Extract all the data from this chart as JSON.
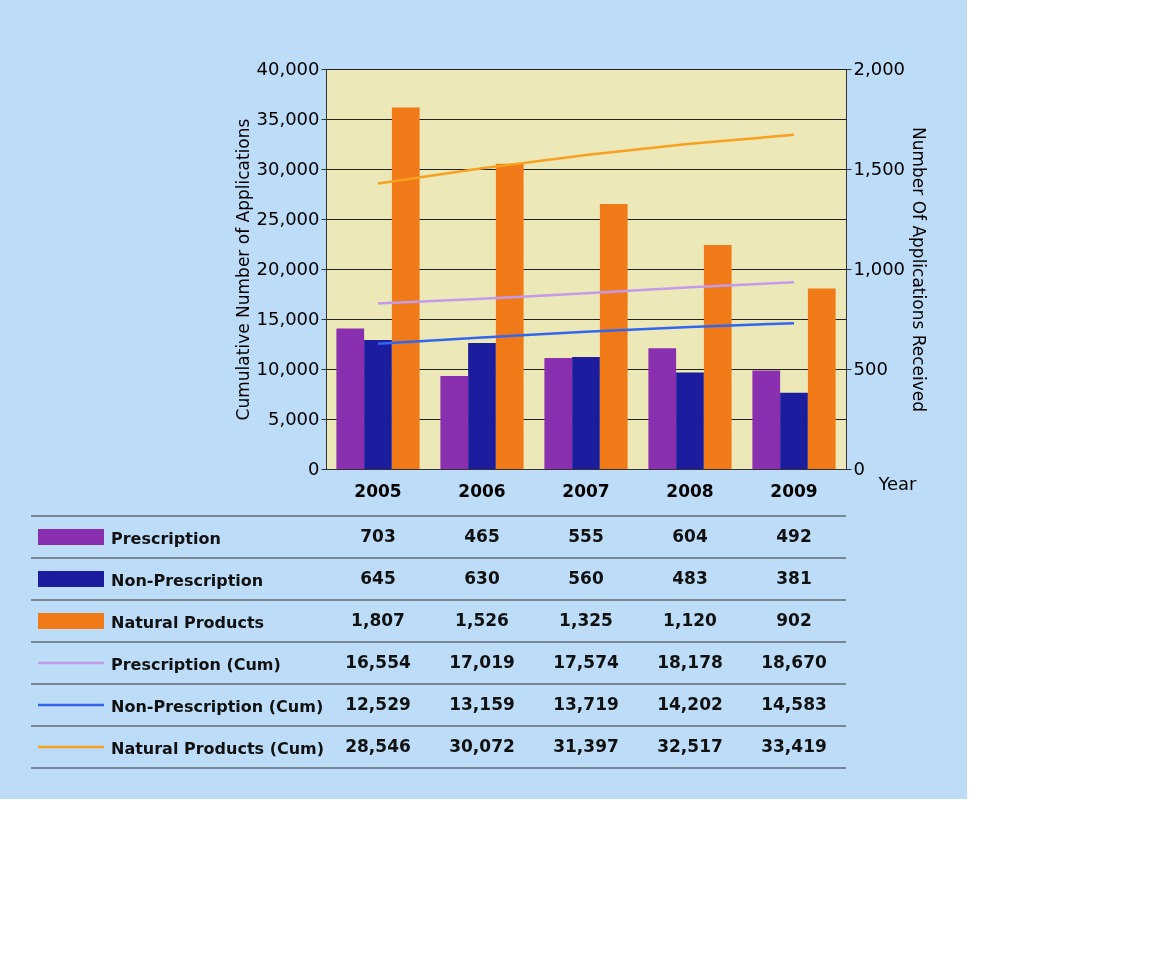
{
  "chart_data": {
    "type": "bar",
    "categories": [
      "2005",
      "2006",
      "2007",
      "2008",
      "2009"
    ],
    "xlabel": "Year",
    "ylabel": "Cumulative Number of Applications",
    "y2label": "Number Of Applications Received",
    "ylim": [
      0,
      40000
    ],
    "yticks": [
      0,
      {
        "value": 5000,
        "label": "5,000"
      },
      {
        "value": 10000,
        "label": "10,000"
      },
      {
        "value": 15000,
        "label": "15,000"
      },
      {
        "value": 20000,
        "label": "20,000"
      },
      {
        "value": 25000,
        "label": "25,000"
      },
      {
        "value": 30000,
        "label": "30,000"
      },
      {
        "value": 35000,
        "label": "35,000"
      },
      {
        "value": 40000,
        "label": "40,000"
      }
    ],
    "y2lim": [
      0,
      2000
    ],
    "y2ticks": [
      0,
      500,
      {
        "value": 1000,
        "label": "1,000"
      },
      {
        "value": 1500,
        "label": "1,500"
      },
      {
        "value": 2000,
        "label": "2,000"
      }
    ],
    "grid": "y",
    "legend": "bottom left",
    "marker": "none",
    "line_style": "solid",
    "series": [
      {
        "name": "Prescription",
        "axis": "y2",
        "color": "#8a2fb0",
        "values": [
          703,
          465,
          555,
          604,
          492
        ],
        "value_labels": [
          "703",
          "465",
          "555",
          "604",
          "492"
        ]
      },
      {
        "name": "Non-Prescription",
        "axis": "y2",
        "color": "#1c1c9e",
        "values": [
          645,
          630,
          560,
          483,
          381
        ],
        "value_labels": [
          "645",
          "630",
          "560",
          "483",
          "381"
        ]
      },
      {
        "name": "Natural Products",
        "axis": "y2",
        "color": "#f07a18",
        "values": [
          1807,
          1526,
          1325,
          1120,
          902
        ],
        "value_labels": [
          "1,807",
          "1,526",
          "1,325",
          "1,120",
          "902"
        ]
      },
      {
        "name": "Prescription (Cum)",
        "type": "line",
        "axis": "y",
        "color": "#c49be8",
        "values": [
          16554,
          17019,
          17574,
          18178,
          18670
        ],
        "value_labels": [
          "16,554",
          "17,019",
          "17,574",
          "18,178",
          "18,670"
        ]
      },
      {
        "name": "Non-Prescription (Cum)",
        "type": "line",
        "axis": "y",
        "color": "#3366ee",
        "values": [
          12529,
          13159,
          13719,
          14202,
          14583
        ],
        "value_labels": [
          "12,529",
          "13,159",
          "13,719",
          "14,202",
          "14,583"
        ]
      },
      {
        "name": "Natural Products (Cum)",
        "type": "line",
        "axis": "y",
        "color": "#f8a020",
        "values": [
          28546,
          30072,
          31397,
          32517,
          33419
        ],
        "value_labels": [
          "28,546",
          "30,072",
          "31,397",
          "32,517",
          "33,419"
        ]
      }
    ]
  }
}
